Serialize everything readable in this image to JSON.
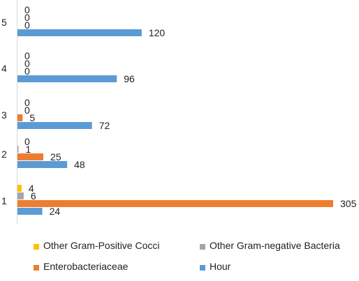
{
  "chart_data": {
    "type": "bar",
    "orientation": "horizontal",
    "categories": [
      "1",
      "2",
      "3",
      "4",
      "5"
    ],
    "series": [
      {
        "name": "Other Gram-Positive Cocci",
        "color": "#ffc000",
        "values": [
          4,
          0,
          0,
          0,
          0
        ]
      },
      {
        "name": "Other Gram-negative Bacteria",
        "color": "#a5a5a5",
        "values": [
          6,
          1,
          0,
          0,
          0
        ]
      },
      {
        "name": "Enterobacteriaceae",
        "color": "#ed7d31",
        "values": [
          305,
          25,
          5,
          0,
          0
        ]
      },
      {
        "name": "Hour",
        "color": "#5b9bd5",
        "values": [
          24,
          48,
          72,
          96,
          120
        ]
      }
    ],
    "xlim": [
      0,
      305
    ],
    "grid": false,
    "legend_position": "bottom",
    "data_labels": true
  },
  "legend": [
    {
      "label": "Other Gram-Positive Cocci",
      "color": "#ffc000"
    },
    {
      "label": "Other Gram-negative Bacteria",
      "color": "#a5a5a5"
    },
    {
      "label": "Enterobacteriaceae",
      "color": "#ed7d31"
    },
    {
      "label": "Hour",
      "color": "#5b9bd5"
    }
  ]
}
